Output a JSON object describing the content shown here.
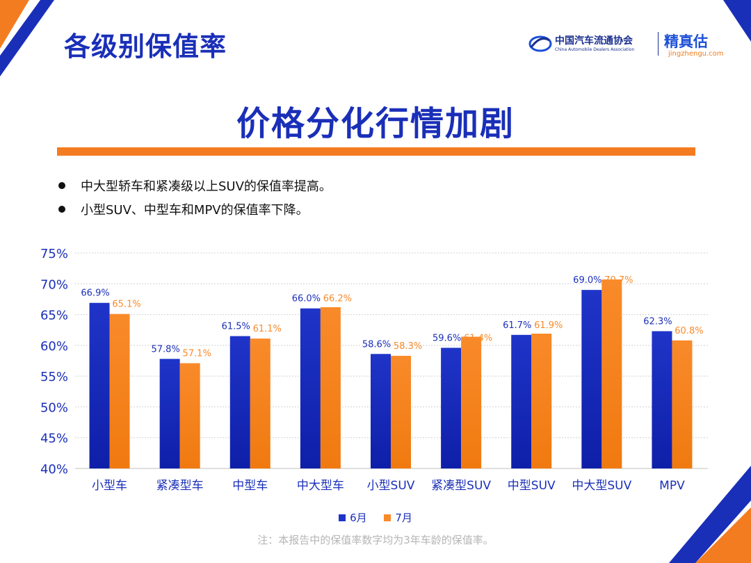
{
  "header": {
    "page_title": "各级别保值率",
    "logo_cada_cn": "中国汽车流通协会",
    "logo_cada_en": "China Automobile Dealers Association",
    "logo_jzg_cn": "精真估",
    "logo_jzg_en": "jingzhengu.com"
  },
  "headline": "价格分化行情加剧",
  "bullets": [
    "中大型轿车和紧凑级以上SUV的保值率提高。",
    "小型SUV、中型车和MPV的保值率下降。"
  ],
  "colors": {
    "june": "#1f34c8",
    "july": "#f98a2a",
    "accent_orange": "#f47c20",
    "title_blue": "#1a2fb8"
  },
  "chart_data": {
    "type": "bar",
    "categories": [
      "小型车",
      "紧凑型车",
      "中型车",
      "中大型车",
      "小型SUV",
      "紧凑型SUV",
      "中型SUV",
      "中大型SUV",
      "MPV"
    ],
    "series": [
      {
        "name": "6月",
        "values": [
          66.9,
          57.8,
          61.5,
          66.0,
          58.6,
          59.6,
          61.7,
          69.0,
          62.3
        ],
        "labels": [
          "66.9%",
          "57.8%",
          "61.5%",
          "66.0%",
          "58.6%",
          "59.6%",
          "61.7%",
          "69.0%",
          "62.3%"
        ]
      },
      {
        "name": "7月",
        "values": [
          65.1,
          57.1,
          61.1,
          66.2,
          58.3,
          61.4,
          61.9,
          70.7,
          60.8
        ],
        "labels": [
          "65.1%",
          "57.1%",
          "61.1%",
          "66.2%",
          "58.3%",
          "61.4%",
          "61.9%",
          "70.7%",
          "60.8%"
        ]
      }
    ],
    "ylim": [
      40,
      75
    ],
    "yticks": [
      40,
      45,
      50,
      55,
      60,
      65,
      70,
      75
    ],
    "ytick_labels": [
      "40%",
      "45%",
      "50%",
      "55%",
      "60%",
      "65%",
      "70%",
      "75%"
    ],
    "grid": true,
    "legend_position": "bottom"
  },
  "note": "注：本报告中的保值率数字均为3年车龄的保值率。"
}
